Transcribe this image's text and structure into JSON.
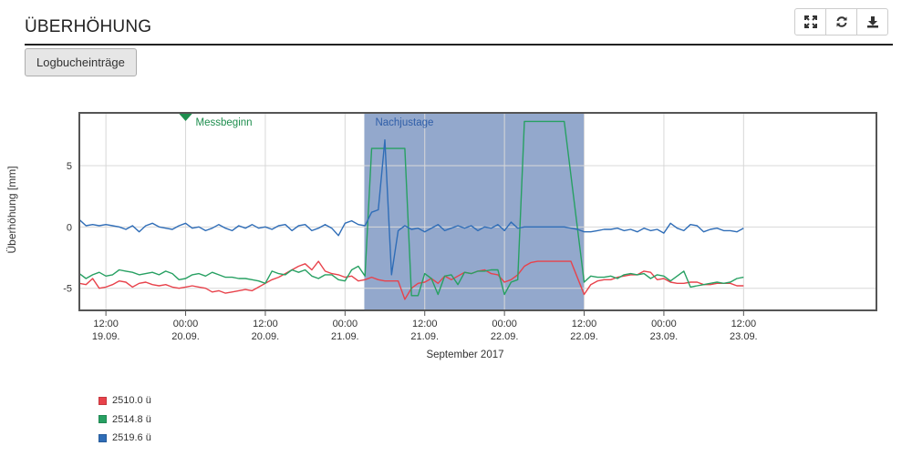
{
  "header": {
    "title": "ÜBERHÖHUNG"
  },
  "toolbar": {
    "fullscreen_icon": "expand-icon",
    "refresh_icon": "refresh-icon",
    "download_icon": "download-icon"
  },
  "buttons": {
    "log_label": "Logbucheinträge"
  },
  "chart_data": {
    "type": "line",
    "ylabel": "Überhöhung [mm]",
    "xlabel": "September 2017",
    "ylim": [
      -6.8,
      9.3
    ],
    "yticks": [
      5,
      0,
      -5
    ],
    "xlim_hours": [
      -4,
      116
    ],
    "x_ticks": [
      {
        "h": 0,
        "t": "12:00",
        "d": "19.09."
      },
      {
        "h": 12,
        "t": "00:00",
        "d": "20.09."
      },
      {
        "h": 24,
        "t": "12:00",
        "d": "20.09."
      },
      {
        "h": 36,
        "t": "00:00",
        "d": "21.09."
      },
      {
        "h": 48,
        "t": "12:00",
        "d": "21.09."
      },
      {
        "h": 60,
        "t": "00:00",
        "d": "22.09."
      },
      {
        "h": 72,
        "t": "12:00",
        "d": "22.09."
      },
      {
        "h": 84,
        "t": "00:00",
        "d": "23.09."
      },
      {
        "h": 96,
        "t": "12:00",
        "d": "23.09."
      }
    ],
    "band": {
      "from": 38.9,
      "to": 72,
      "label": "Nachjustage",
      "color": "#6a87b8"
    },
    "marker": {
      "at": 12,
      "label": "Messbeginn",
      "color": "#1e8e4e"
    },
    "series": [
      {
        "name": "2510.0 ü",
        "color": "#e8424b",
        "points": [
          [
            -4,
            -4.6
          ],
          [
            -3,
            -4.7
          ],
          [
            -2,
            -4.2
          ],
          [
            -1,
            -5.0
          ],
          [
            0,
            -4.9
          ],
          [
            1,
            -4.7
          ],
          [
            2,
            -4.4
          ],
          [
            3,
            -4.5
          ],
          [
            4,
            -4.9
          ],
          [
            5,
            -4.6
          ],
          [
            6,
            -4.5
          ],
          [
            7,
            -4.7
          ],
          [
            8,
            -4.8
          ],
          [
            9,
            -4.7
          ],
          [
            10,
            -4.9
          ],
          [
            11,
            -5.0
          ],
          [
            12,
            -4.9
          ],
          [
            13,
            -4.8
          ],
          [
            14,
            -4.9
          ],
          [
            15,
            -5.0
          ],
          [
            16,
            -5.3
          ],
          [
            17,
            -5.2
          ],
          [
            18,
            -5.4
          ],
          [
            19,
            -5.3
          ],
          [
            20,
            -5.2
          ],
          [
            21,
            -5.1
          ],
          [
            22,
            -5.2
          ],
          [
            23,
            -4.9
          ],
          [
            24,
            -4.6
          ],
          [
            25,
            -4.3
          ],
          [
            26,
            -4.1
          ],
          [
            27,
            -3.8
          ],
          [
            28,
            -3.5
          ],
          [
            29,
            -3.2
          ],
          [
            30,
            -3.0
          ],
          [
            31,
            -3.5
          ],
          [
            32,
            -2.8
          ],
          [
            33,
            -3.6
          ],
          [
            34,
            -3.8
          ],
          [
            35,
            -3.9
          ],
          [
            36,
            -4.1
          ],
          [
            37,
            -4.0
          ],
          [
            38,
            -4.4
          ],
          [
            39,
            -4.3
          ],
          [
            40,
            -4.1
          ],
          [
            41,
            -4.3
          ],
          [
            42,
            -4.4
          ],
          [
            43,
            -4.4
          ],
          [
            44,
            -4.4
          ],
          [
            45,
            -5.9
          ],
          [
            46,
            -5.0
          ],
          [
            47,
            -4.6
          ],
          [
            48,
            -4.5
          ],
          [
            49,
            -4.2
          ],
          [
            50,
            -4.6
          ],
          [
            51,
            -4.0
          ],
          [
            52,
            -4.3
          ],
          [
            53,
            -4.0
          ],
          [
            54,
            -3.7
          ],
          [
            55,
            -3.8
          ],
          [
            56,
            -3.6
          ],
          [
            57,
            -3.5
          ],
          [
            58,
            -3.8
          ],
          [
            59,
            -3.9
          ],
          [
            60,
            -4.5
          ],
          [
            61,
            -4.3
          ],
          [
            62,
            -3.9
          ],
          [
            63,
            -3.2
          ],
          [
            64,
            -2.9
          ],
          [
            65,
            -2.8
          ],
          [
            66,
            -2.8
          ],
          [
            67,
            -2.8
          ],
          [
            68,
            -2.8
          ],
          [
            69,
            -2.8
          ],
          [
            70,
            -2.8
          ],
          [
            72,
            -5.5
          ],
          [
            73,
            -4.7
          ],
          [
            74,
            -4.4
          ],
          [
            75,
            -4.3
          ],
          [
            76,
            -4.3
          ],
          [
            77,
            -4.1
          ],
          [
            78,
            -4.0
          ],
          [
            79,
            -3.9
          ],
          [
            80,
            -3.9
          ],
          [
            81,
            -3.6
          ],
          [
            82,
            -3.7
          ],
          [
            83,
            -4.3
          ],
          [
            84,
            -4.2
          ],
          [
            85,
            -4.5
          ],
          [
            86,
            -4.6
          ],
          [
            87,
            -4.6
          ],
          [
            88,
            -4.5
          ],
          [
            89,
            -4.5
          ],
          [
            90,
            -4.7
          ],
          [
            91,
            -4.7
          ],
          [
            92,
            -4.6
          ],
          [
            93,
            -4.6
          ],
          [
            94,
            -4.6
          ],
          [
            95,
            -4.8
          ],
          [
            96,
            -4.8
          ]
        ]
      },
      {
        "name": "2514.8 ü",
        "color": "#27a062",
        "points": [
          [
            -4,
            -3.8
          ],
          [
            -3,
            -4.2
          ],
          [
            -2,
            -3.9
          ],
          [
            -1,
            -3.7
          ],
          [
            0,
            -4.0
          ],
          [
            1,
            -3.9
          ],
          [
            2,
            -3.5
          ],
          [
            3,
            -3.6
          ],
          [
            4,
            -3.7
          ],
          [
            5,
            -3.9
          ],
          [
            6,
            -3.8
          ],
          [
            7,
            -3.7
          ],
          [
            8,
            -3.9
          ],
          [
            9,
            -3.6
          ],
          [
            10,
            -3.8
          ],
          [
            11,
            -4.3
          ],
          [
            12,
            -4.2
          ],
          [
            13,
            -3.9
          ],
          [
            14,
            -3.8
          ],
          [
            15,
            -4.0
          ],
          [
            16,
            -3.7
          ],
          [
            17,
            -3.9
          ],
          [
            18,
            -4.1
          ],
          [
            19,
            -4.1
          ],
          [
            20,
            -4.2
          ],
          [
            21,
            -4.2
          ],
          [
            22,
            -4.3
          ],
          [
            23,
            -4.4
          ],
          [
            24,
            -4.6
          ],
          [
            25,
            -3.6
          ],
          [
            26,
            -3.8
          ],
          [
            27,
            -3.9
          ],
          [
            28,
            -3.5
          ],
          [
            29,
            -3.7
          ],
          [
            30,
            -3.5
          ],
          [
            31,
            -4.0
          ],
          [
            32,
            -4.2
          ],
          [
            33,
            -3.9
          ],
          [
            34,
            -3.9
          ],
          [
            35,
            -4.3
          ],
          [
            36,
            -4.4
          ],
          [
            37,
            -3.5
          ],
          [
            38,
            -3.2
          ],
          [
            39,
            -4.0
          ],
          [
            40,
            6.4
          ],
          [
            45,
            6.4
          ],
          [
            46,
            -5.6
          ],
          [
            47,
            -5.6
          ],
          [
            48,
            -3.8
          ],
          [
            49,
            -4.2
          ],
          [
            50,
            -5.5
          ],
          [
            51,
            -4.0
          ],
          [
            52,
            -3.9
          ],
          [
            53,
            -4.7
          ],
          [
            54,
            -3.7
          ],
          [
            55,
            -3.8
          ],
          [
            56,
            -3.6
          ],
          [
            57,
            -3.6
          ],
          [
            58,
            -3.5
          ],
          [
            59,
            -3.5
          ],
          [
            60,
            -5.5
          ],
          [
            61,
            -4.5
          ],
          [
            62,
            -4.3
          ],
          [
            63,
            8.6
          ],
          [
            64,
            8.6
          ],
          [
            69,
            8.6
          ],
          [
            72,
            -4.5
          ],
          [
            73,
            -4.0
          ],
          [
            74,
            -4.1
          ],
          [
            75,
            -4.1
          ],
          [
            76,
            -4.0
          ],
          [
            77,
            -4.2
          ],
          [
            78,
            -3.9
          ],
          [
            79,
            -3.8
          ],
          [
            80,
            -3.9
          ],
          [
            81,
            -3.8
          ],
          [
            82,
            -4.2
          ],
          [
            83,
            -3.9
          ],
          [
            84,
            -4.0
          ],
          [
            85,
            -4.4
          ],
          [
            86,
            -4.0
          ],
          [
            87,
            -3.6
          ],
          [
            88,
            -4.9
          ],
          [
            89,
            -4.8
          ],
          [
            90,
            -4.7
          ],
          [
            91,
            -4.6
          ],
          [
            92,
            -4.5
          ],
          [
            93,
            -4.6
          ],
          [
            94,
            -4.5
          ],
          [
            95,
            -4.2
          ],
          [
            96,
            -4.1
          ]
        ]
      },
      {
        "name": "2519.6 ü",
        "color": "#2f6db7",
        "points": [
          [
            -4,
            0.6
          ],
          [
            -3,
            0.1
          ],
          [
            -2,
            0.2
          ],
          [
            -1,
            0.1
          ],
          [
            0,
            0.2
          ],
          [
            1,
            0.1
          ],
          [
            2,
            0.0
          ],
          [
            3,
            -0.2
          ],
          [
            4,
            0.1
          ],
          [
            5,
            -0.4
          ],
          [
            6,
            0.1
          ],
          [
            7,
            0.3
          ],
          [
            8,
            0.0
          ],
          [
            9,
            -0.1
          ],
          [
            10,
            -0.2
          ],
          [
            11,
            0.1
          ],
          [
            12,
            0.3
          ],
          [
            13,
            -0.1
          ],
          [
            14,
            0.0
          ],
          [
            15,
            -0.3
          ],
          [
            16,
            -0.1
          ],
          [
            17,
            0.2
          ],
          [
            18,
            -0.1
          ],
          [
            19,
            -0.3
          ],
          [
            20,
            0.1
          ],
          [
            21,
            -0.1
          ],
          [
            22,
            0.2
          ],
          [
            23,
            -0.1
          ],
          [
            24,
            0.0
          ],
          [
            25,
            -0.2
          ],
          [
            26,
            0.1
          ],
          [
            27,
            0.2
          ],
          [
            28,
            -0.3
          ],
          [
            29,
            0.1
          ],
          [
            30,
            0.2
          ],
          [
            31,
            -0.3
          ],
          [
            32,
            -0.1
          ],
          [
            33,
            0.2
          ],
          [
            34,
            -0.1
          ],
          [
            35,
            -0.7
          ],
          [
            36,
            0.3
          ],
          [
            37,
            0.5
          ],
          [
            38,
            0.2
          ],
          [
            39,
            0.1
          ],
          [
            40,
            1.2
          ],
          [
            41,
            1.4
          ],
          [
            42,
            7.1
          ],
          [
            43,
            -3.9
          ],
          [
            44,
            -0.3
          ],
          [
            45,
            0.1
          ],
          [
            46,
            -0.2
          ],
          [
            47,
            -0.1
          ],
          [
            48,
            -0.4
          ],
          [
            49,
            -0.1
          ],
          [
            50,
            0.2
          ],
          [
            51,
            -0.3
          ],
          [
            52,
            -0.1
          ],
          [
            53,
            0.1
          ],
          [
            54,
            -0.1
          ],
          [
            55,
            0.1
          ],
          [
            56,
            -0.3
          ],
          [
            57,
            0.0
          ],
          [
            58,
            -0.1
          ],
          [
            59,
            0.2
          ],
          [
            60,
            -0.3
          ],
          [
            61,
            0.4
          ],
          [
            62,
            -0.1
          ],
          [
            63,
            0.0
          ],
          [
            64,
            0.0
          ],
          [
            65,
            0.0
          ],
          [
            66,
            0.0
          ],
          [
            67,
            0.0
          ],
          [
            68,
            0.0
          ],
          [
            69,
            0.0
          ],
          [
            70,
            -0.1
          ],
          [
            71,
            -0.2
          ],
          [
            72,
            -0.4
          ],
          [
            73,
            -0.4
          ],
          [
            74,
            -0.3
          ],
          [
            75,
            -0.2
          ],
          [
            76,
            -0.2
          ],
          [
            77,
            -0.1
          ],
          [
            78,
            -0.3
          ],
          [
            79,
            -0.2
          ],
          [
            80,
            -0.4
          ],
          [
            81,
            -0.1
          ],
          [
            82,
            -0.3
          ],
          [
            83,
            -0.2
          ],
          [
            84,
            -0.5
          ],
          [
            85,
            0.3
          ],
          [
            86,
            -0.1
          ],
          [
            87,
            -0.3
          ],
          [
            88,
            0.2
          ],
          [
            89,
            0.1
          ],
          [
            90,
            -0.4
          ],
          [
            91,
            -0.2
          ],
          [
            92,
            -0.1
          ],
          [
            93,
            -0.3
          ],
          [
            94,
            -0.3
          ],
          [
            95,
            -0.4
          ],
          [
            96,
            -0.1
          ]
        ]
      }
    ]
  }
}
